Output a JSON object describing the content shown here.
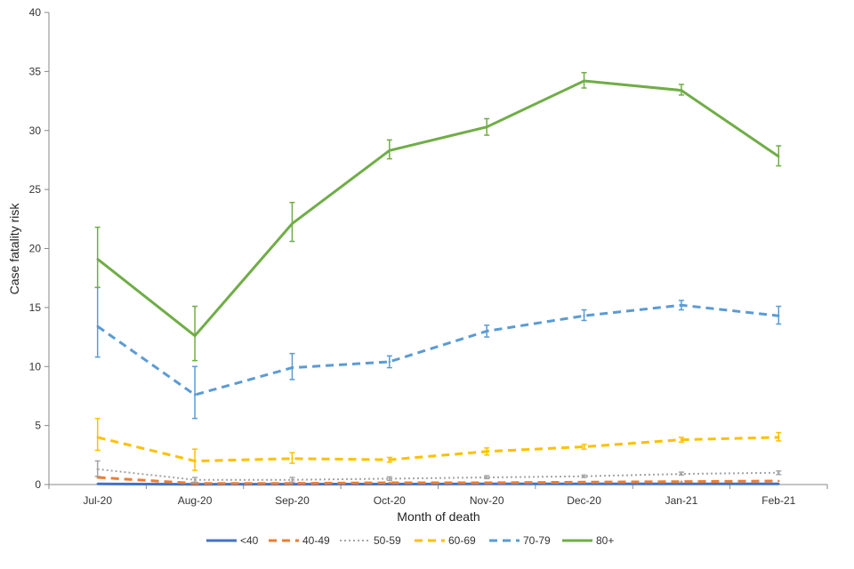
{
  "chart_data": {
    "type": "line",
    "title": "",
    "xlabel": "Month of death",
    "ylabel": "Case fatality risk",
    "categories": [
      "Jul-20",
      "Aug-20",
      "Sep-20",
      "Oct-20",
      "Nov-20",
      "Dec-20",
      "Jan-21",
      "Feb-21"
    ],
    "ylim": [
      0,
      40
    ],
    "yticks": [
      0,
      5,
      10,
      15,
      20,
      25,
      30,
      35,
      40
    ],
    "grid": false,
    "legend_position": "bottom",
    "series": [
      {
        "name": "<40",
        "color": "#4472C4",
        "dash": "solid",
        "error_bars": false,
        "values": [
          0.05,
          0.02,
          0.03,
          0.04,
          0.05,
          0.05,
          0.06,
          0.06
        ],
        "lower": [],
        "upper": []
      },
      {
        "name": "40-49",
        "color": "#ED7D31",
        "dash": "dash",
        "error_bars": false,
        "values": [
          0.6,
          0.1,
          0.1,
          0.15,
          0.15,
          0.2,
          0.25,
          0.3
        ],
        "lower": [],
        "upper": []
      },
      {
        "name": "50-59",
        "color": "#A5A5A5",
        "dash": "dot",
        "error_bars": true,
        "values": [
          1.3,
          0.4,
          0.4,
          0.5,
          0.6,
          0.7,
          0.9,
          1.0
        ],
        "lower": [
          0.7,
          0.2,
          0.2,
          0.35,
          0.5,
          0.6,
          0.8,
          0.85
        ],
        "upper": [
          2.0,
          0.6,
          0.6,
          0.65,
          0.75,
          0.8,
          1.05,
          1.15
        ]
      },
      {
        "name": "60-69",
        "color": "#FFC000",
        "dash": "dash",
        "error_bars": true,
        "values": [
          4.0,
          2.0,
          2.2,
          2.1,
          2.8,
          3.2,
          3.8,
          4.0
        ],
        "lower": [
          2.9,
          1.2,
          1.8,
          1.9,
          2.5,
          3.0,
          3.6,
          3.7
        ],
        "upper": [
          5.6,
          3.0,
          2.7,
          2.3,
          3.1,
          3.4,
          4.0,
          4.4
        ]
      },
      {
        "name": "70-79",
        "color": "#5B9BD5",
        "dash": "dash",
        "error_bars": true,
        "values": [
          13.4,
          7.6,
          9.9,
          10.4,
          13.0,
          14.3,
          15.2,
          14.3
        ],
        "lower": [
          10.8,
          5.6,
          8.9,
          9.9,
          12.5,
          13.9,
          14.8,
          13.6
        ],
        "upper": [
          16.7,
          10.0,
          11.1,
          10.9,
          13.5,
          14.8,
          15.6,
          15.1
        ]
      },
      {
        "name": "80+",
        "color": "#70AD47",
        "dash": "solid",
        "error_bars": true,
        "values": [
          19.1,
          12.6,
          22.1,
          28.3,
          30.3,
          34.2,
          33.4,
          27.8
        ],
        "lower": [
          16.7,
          10.5,
          20.6,
          27.6,
          29.6,
          33.6,
          33.0,
          27.0
        ],
        "upper": [
          21.8,
          15.1,
          23.9,
          29.2,
          31.0,
          34.9,
          33.9,
          28.7
        ]
      }
    ]
  }
}
